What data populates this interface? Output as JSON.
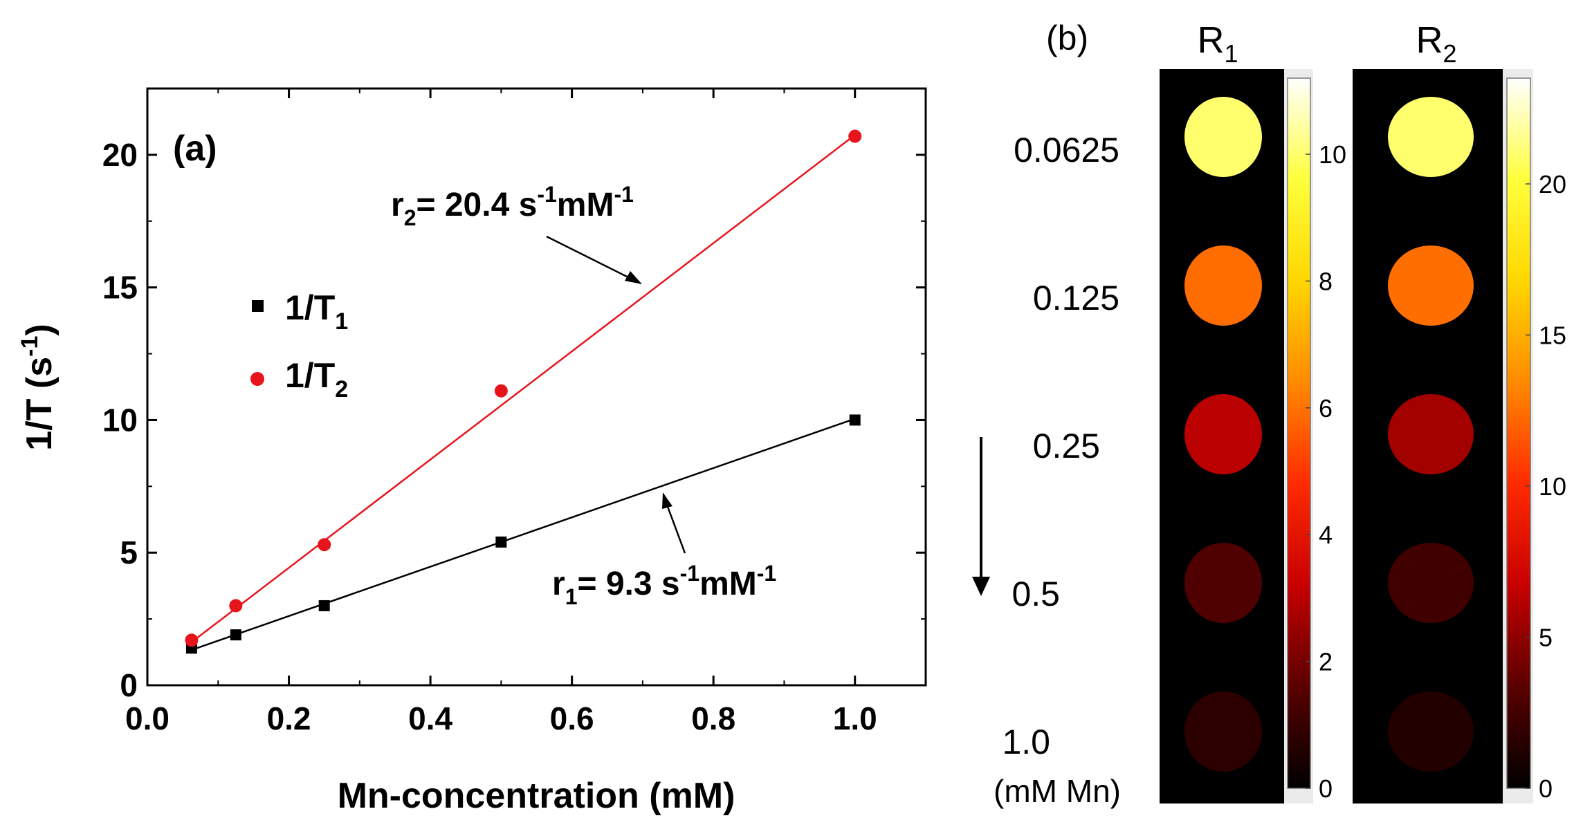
{
  "chart_data": [
    {
      "panel": "(a)",
      "type": "scatter",
      "xlabel": "Mn-concentration (mM)",
      "ylabel": "1/T (s",
      "ylabel_sup": "-1",
      "ylabel_close": ")",
      "xlim": [
        0.0,
        1.1
      ],
      "ylim": [
        0,
        22.5
      ],
      "xticks": [
        "0.0",
        "0.2",
        "0.4",
        "0.6",
        "0.8",
        "1.0"
      ],
      "yticks": [
        "0",
        "5",
        "10",
        "15",
        "20"
      ],
      "series": [
        {
          "name": "1/T",
          "subscript": "1",
          "marker": "square",
          "color": "#000000",
          "x": [
            0.0625,
            0.125,
            0.25,
            0.5,
            1.0
          ],
          "y": [
            1.4,
            1.9,
            3.0,
            5.4,
            10.0
          ],
          "fit": {
            "slope": 9.3,
            "intercept": 0.75
          }
        },
        {
          "name": "1/T",
          "subscript": "2",
          "marker": "circle",
          "color": "#e8141c",
          "x": [
            0.0625,
            0.125,
            0.25,
            0.5,
            1.0
          ],
          "y": [
            1.7,
            3.0,
            5.3,
            11.1,
            20.7
          ],
          "fit": {
            "slope": 20.4,
            "intercept": 0.35
          }
        }
      ],
      "annotations": {
        "r2": {
          "base": "r",
          "sub": "2",
          "eq": "= 20.4 s",
          "sup1": "-1",
          "unit": "mM",
          "sup2": "-1"
        },
        "r1": {
          "base": "r",
          "sub": "1",
          "eq": "= 9.3 s",
          "sup1": "-1",
          "unit": "mM",
          "sup2": "-1"
        }
      }
    },
    {
      "panel": "(b)",
      "type": "heatmap",
      "concentrations": [
        "0.0625",
        "0.125",
        "0.25",
        "0.5",
        "1.0"
      ],
      "unit_label": "(mM Mn)",
      "maps": [
        {
          "title": "R",
          "sub": "1",
          "colorbar_ticks": [
            "0",
            "2",
            "4",
            "6",
            "8",
            "10"
          ],
          "colorbar_values": [
            0,
            2,
            4,
            6,
            8,
            10
          ],
          "vmax": 11.2,
          "values": [
            10.0,
            5.9,
            3.0,
            1.4,
            0.8
          ]
        },
        {
          "title": "R",
          "sub": "2",
          "colorbar_ticks": [
            "0",
            "5",
            "10",
            "15",
            "20"
          ],
          "colorbar_values": [
            0,
            5,
            10,
            15,
            20
          ],
          "vmax": 23.5,
          "values": [
            21.0,
            12.5,
            5.6,
            2.4,
            1.3
          ]
        }
      ],
      "colormap": [
        "#000000",
        "#5a0000",
        "#c80000",
        "#ff2a00",
        "#ff8a00",
        "#ffd700",
        "#ffff3c",
        "#ffffff"
      ]
    }
  ]
}
